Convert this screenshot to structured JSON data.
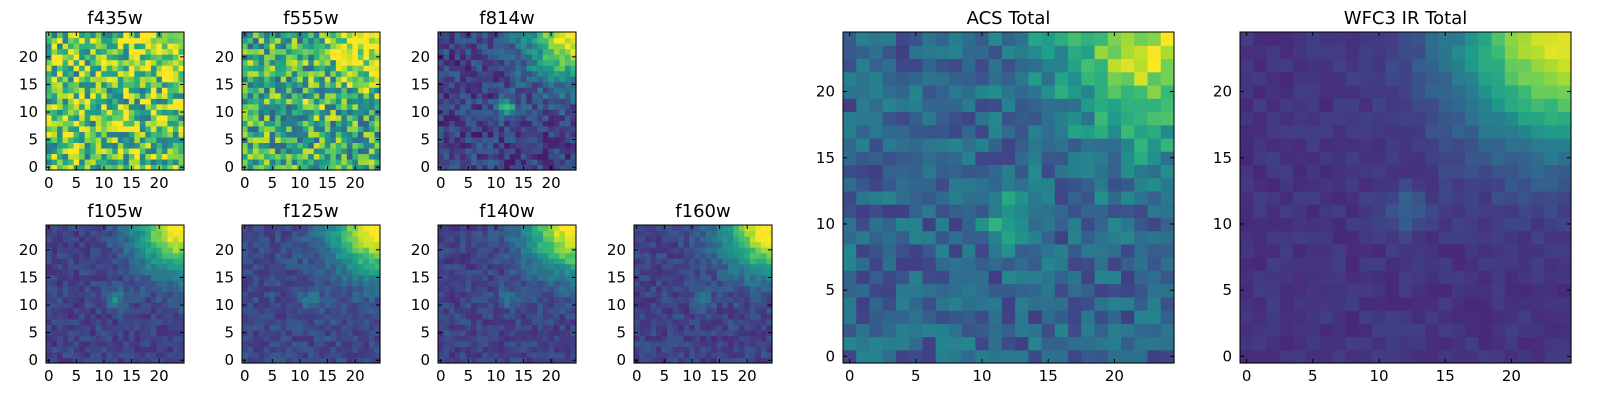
{
  "figure": {
    "title": ""
  },
  "colormap": {
    "name": "viridis",
    "stops": [
      "#440154",
      "#482878",
      "#3e4989",
      "#31688e",
      "#26828e",
      "#1f9e89",
      "#35b779",
      "#6ece58",
      "#b5de2b",
      "#fde725"
    ]
  },
  "chart_data": [
    {
      "id": "f435w",
      "type": "heatmap",
      "title": "f435w",
      "grid_size": 25,
      "x_ticks": [
        0,
        5,
        10,
        15,
        20
      ],
      "y_ticks": [
        0,
        5,
        10,
        15,
        20
      ],
      "xlim": [
        0,
        25
      ],
      "ylim": [
        0,
        25
      ],
      "background": 0.72,
      "noise": 0.35,
      "corner_strength": 0.25,
      "blob": {
        "x": 12.5,
        "y": 9.5,
        "strength": 0.12
      }
    },
    {
      "id": "f555w",
      "type": "heatmap",
      "title": "f555w",
      "grid_size": 25,
      "x_ticks": [
        0,
        5,
        10,
        15,
        20
      ],
      "y_ticks": [
        0,
        5,
        10,
        15,
        20
      ],
      "xlim": [
        0,
        25
      ],
      "ylim": [
        0,
        25
      ],
      "background": 0.62,
      "noise": 0.32,
      "corner_strength": 0.45,
      "blob": {
        "x": 12.5,
        "y": 11.5,
        "strength": 0.25
      }
    },
    {
      "id": "f814w",
      "type": "heatmap",
      "title": "f814w",
      "grid_size": 25,
      "x_ticks": [
        0,
        5,
        10,
        15,
        20
      ],
      "y_ticks": [
        0,
        5,
        10,
        15,
        20
      ],
      "xlim": [
        0,
        25
      ],
      "ylim": [
        0,
        25
      ],
      "background": 0.2,
      "noise": 0.14,
      "corner_strength": 0.85,
      "blob": {
        "x": 12.5,
        "y": 11.5,
        "strength": 0.42
      }
    },
    {
      "id": "f105w",
      "type": "heatmap",
      "title": "f105w",
      "grid_size": 25,
      "x_ticks": [
        0,
        5,
        10,
        15,
        20
      ],
      "y_ticks": [
        0,
        5,
        10,
        15,
        20
      ],
      "xlim": [
        0,
        25
      ],
      "ylim": [
        0,
        25
      ],
      "background": 0.2,
      "noise": 0.08,
      "corner_strength": 0.85,
      "blob": {
        "x": 12.5,
        "y": 11.5,
        "strength": 0.25
      }
    },
    {
      "id": "f125w",
      "type": "heatmap",
      "title": "f125w",
      "grid_size": 25,
      "x_ticks": [
        0,
        5,
        10,
        15,
        20
      ],
      "y_ticks": [
        0,
        5,
        10,
        15,
        20
      ],
      "xlim": [
        0,
        25
      ],
      "ylim": [
        0,
        25
      ],
      "background": 0.22,
      "noise": 0.08,
      "corner_strength": 0.85,
      "blob": {
        "x": 12.5,
        "y": 11.5,
        "strength": 0.2
      }
    },
    {
      "id": "f140w",
      "type": "heatmap",
      "title": "f140w",
      "grid_size": 25,
      "x_ticks": [
        0,
        5,
        10,
        15,
        20
      ],
      "y_ticks": [
        0,
        5,
        10,
        15,
        20
      ],
      "xlim": [
        0,
        25
      ],
      "ylim": [
        0,
        25
      ],
      "background": 0.2,
      "noise": 0.08,
      "corner_strength": 0.85,
      "blob": {
        "x": 12.5,
        "y": 11.5,
        "strength": 0.18
      }
    },
    {
      "id": "f160w",
      "type": "heatmap",
      "title": "f160w",
      "grid_size": 25,
      "x_ticks": [
        0,
        5,
        10,
        15,
        20
      ],
      "y_ticks": [
        0,
        5,
        10,
        15,
        20
      ],
      "xlim": [
        0,
        25
      ],
      "ylim": [
        0,
        25
      ],
      "background": 0.2,
      "noise": 0.08,
      "corner_strength": 0.85,
      "blob": {
        "x": 12.5,
        "y": 11.5,
        "strength": 0.18
      }
    },
    {
      "id": "acs-total",
      "type": "heatmap",
      "title": "ACS Total",
      "grid_size": 25,
      "x_ticks": [
        0,
        5,
        10,
        15,
        20
      ],
      "y_ticks": [
        0,
        5,
        10,
        15,
        20
      ],
      "xlim": [
        0,
        25
      ],
      "ylim": [
        0,
        25
      ],
      "background": 0.32,
      "noise": 0.14,
      "corner_strength": 0.65,
      "blob": {
        "x": 12.5,
        "y": 11,
        "strength": 0.35
      }
    },
    {
      "id": "wfc3-ir-total",
      "type": "heatmap",
      "title": "WFC3 IR Total",
      "grid_size": 25,
      "x_ticks": [
        0,
        5,
        10,
        15,
        20
      ],
      "y_ticks": [
        0,
        5,
        10,
        15,
        20
      ],
      "xlim": [
        0,
        25
      ],
      "ylim": [
        0,
        25
      ],
      "background": 0.15,
      "noise": 0.04,
      "corner_strength": 0.85,
      "blob": {
        "x": 12.5,
        "y": 11.5,
        "strength": 0.16
      }
    }
  ]
}
